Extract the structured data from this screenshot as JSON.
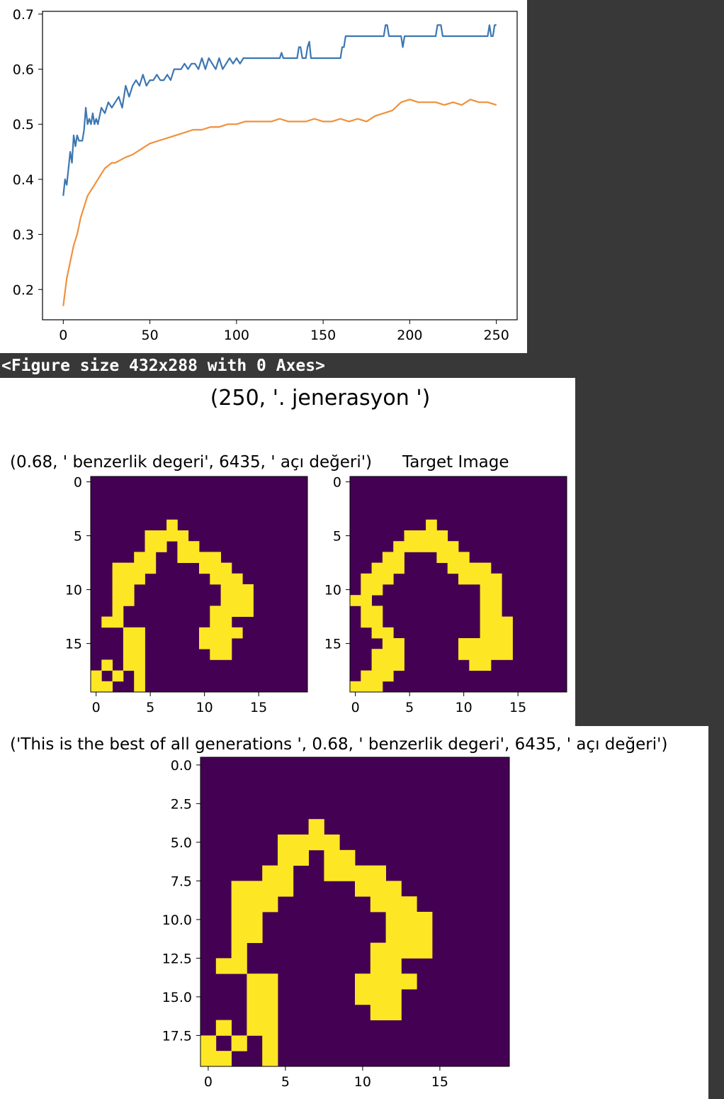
{
  "colors": {
    "blue": "#3d77b2",
    "orange": "#f0913c",
    "background": "#383838",
    "viridis_low": "#440154",
    "viridis_high": "#fde725"
  },
  "figure_text": "<Figure size 432x288 with 0 Axes>",
  "suptitle": "(250, '. jenerasyon ')",
  "chart_data": [
    {
      "type": "line",
      "xlim": [
        -12,
        262
      ],
      "ylim": [
        0.145,
        0.705
      ],
      "xticks": [
        0,
        50,
        100,
        150,
        200,
        250
      ],
      "yticks": [
        0.2,
        0.3,
        0.4,
        0.5,
        0.6,
        0.7
      ],
      "grid": false,
      "series": [
        {
          "color": "#3d77b2",
          "x": [
            0,
            1,
            2,
            3,
            4,
            5,
            6,
            7,
            8,
            9,
            10,
            11,
            12,
            13,
            14,
            15,
            16,
            17,
            18,
            19,
            20,
            22,
            24,
            26,
            28,
            30,
            32,
            34,
            36,
            38,
            40,
            42,
            44,
            46,
            48,
            50,
            52,
            54,
            56,
            58,
            60,
            62,
            64,
            66,
            68,
            70,
            72,
            74,
            76,
            78,
            80,
            82,
            84,
            86,
            88,
            90,
            92,
            94,
            96,
            98,
            100,
            102,
            104,
            106,
            108,
            110,
            115,
            120,
            125,
            126,
            127,
            130,
            135,
            136,
            137,
            138,
            140,
            141,
            142,
            143,
            150,
            155,
            160,
            161,
            162,
            163,
            165,
            170,
            175,
            180,
            185,
            186,
            187,
            188,
            190,
            195,
            196,
            197,
            200,
            205,
            210,
            215,
            216,
            217,
            218,
            219,
            220,
            225,
            230,
            235,
            240,
            245,
            246,
            247,
            248,
            249,
            250
          ],
          "y": [
            0.37,
            0.4,
            0.39,
            0.42,
            0.45,
            0.43,
            0.48,
            0.46,
            0.48,
            0.47,
            0.47,
            0.47,
            0.49,
            0.53,
            0.5,
            0.51,
            0.5,
            0.52,
            0.5,
            0.51,
            0.5,
            0.53,
            0.52,
            0.54,
            0.53,
            0.54,
            0.55,
            0.53,
            0.57,
            0.55,
            0.57,
            0.58,
            0.57,
            0.59,
            0.57,
            0.58,
            0.58,
            0.59,
            0.58,
            0.58,
            0.59,
            0.58,
            0.6,
            0.6,
            0.6,
            0.61,
            0.6,
            0.61,
            0.61,
            0.6,
            0.62,
            0.6,
            0.62,
            0.61,
            0.6,
            0.62,
            0.6,
            0.61,
            0.62,
            0.61,
            0.62,
            0.61,
            0.62,
            0.62,
            0.62,
            0.62,
            0.62,
            0.62,
            0.62,
            0.63,
            0.62,
            0.62,
            0.62,
            0.64,
            0.64,
            0.62,
            0.62,
            0.64,
            0.65,
            0.62,
            0.62,
            0.62,
            0.62,
            0.64,
            0.64,
            0.66,
            0.66,
            0.66,
            0.66,
            0.66,
            0.66,
            0.68,
            0.68,
            0.66,
            0.66,
            0.66,
            0.64,
            0.66,
            0.66,
            0.66,
            0.66,
            0.66,
            0.68,
            0.68,
            0.68,
            0.66,
            0.66,
            0.66,
            0.66,
            0.66,
            0.66,
            0.66,
            0.68,
            0.66,
            0.66,
            0.68,
            0.68
          ]
        },
        {
          "color": "#f0913c",
          "x": [
            0,
            2,
            4,
            6,
            8,
            10,
            12,
            14,
            16,
            18,
            20,
            22,
            24,
            26,
            28,
            30,
            33,
            36,
            40,
            45,
            50,
            55,
            60,
            65,
            70,
            75,
            80,
            85,
            90,
            95,
            100,
            105,
            110,
            115,
            120,
            125,
            130,
            135,
            140,
            145,
            150,
            155,
            160,
            165,
            170,
            175,
            180,
            185,
            190,
            195,
            200,
            205,
            210,
            215,
            220,
            225,
            230,
            235,
            240,
            245,
            250
          ],
          "y": [
            0.17,
            0.22,
            0.25,
            0.28,
            0.3,
            0.33,
            0.35,
            0.37,
            0.38,
            0.39,
            0.4,
            0.41,
            0.42,
            0.425,
            0.43,
            0.43,
            0.435,
            0.44,
            0.445,
            0.455,
            0.465,
            0.47,
            0.475,
            0.48,
            0.485,
            0.49,
            0.49,
            0.495,
            0.495,
            0.5,
            0.5,
            0.505,
            0.505,
            0.505,
            0.505,
            0.51,
            0.505,
            0.505,
            0.505,
            0.51,
            0.505,
            0.505,
            0.51,
            0.505,
            0.51,
            0.505,
            0.515,
            0.52,
            0.525,
            0.54,
            0.545,
            0.54,
            0.54,
            0.54,
            0.535,
            0.54,
            0.535,
            0.545,
            0.54,
            0.54,
            0.535
          ]
        }
      ]
    },
    {
      "type": "heatmap",
      "title": "(0.68, ' benzerlik degeri', 6435, ' açı değeri')",
      "xticks": [
        "0",
        "5",
        "10",
        "15"
      ],
      "yticks": [
        "0",
        "5",
        "10",
        "15"
      ],
      "rows": [
        "00000000000000000000",
        "00000000000000000000",
        "00000000000000000000",
        "00000000000000000000",
        "00000001000000000000",
        "00000111100000000000",
        "00000110110000000000",
        "00001100111100000000",
        "00111100001110000000",
        "00111000000111000000",
        "00110000000011100000",
        "00110000000011100000",
        "00100000000111100000",
        "01100000000110000000",
        "00011000001111000000",
        "00011000001110000000",
        "00011000000110000000",
        "01011000000000000000",
        "10101000000000000000",
        "11001000000000000000"
      ]
    },
    {
      "type": "heatmap",
      "title": "Target Image",
      "xticks": [
        "0",
        "5",
        "10",
        "15"
      ],
      "yticks": [
        "0",
        "5",
        "10",
        "15"
      ],
      "rows": [
        "00000000000000000000",
        "00000000000000000000",
        "00000000000000000000",
        "00000000000000000000",
        "00000001000000000000",
        "00000111100000000000",
        "00001111110000000000",
        "00011000111000000000",
        "00111000011110000000",
        "01110000001111000000",
        "01100000000011000000",
        "11000000000011000000",
        "01100000000011000000",
        "01100000000011100000",
        "00110000000011100000",
        "00011000001111100000",
        "00111000001111100000",
        "00111000000110000000",
        "01110000000000000000",
        "11100000000000000000"
      ]
    },
    {
      "type": "heatmap",
      "title": "('This is the best of all generations ', 0.68, ' benzerlik degeri', 6435, ' açı değeri')",
      "xticks": [
        "0",
        "5",
        "10",
        "15"
      ],
      "yticks": [
        "0.0",
        "2.5",
        "5.0",
        "7.5",
        "10.0",
        "12.5",
        "15.0",
        "17.5"
      ],
      "rows": [
        "00000000000000000000",
        "00000000000000000000",
        "00000000000000000000",
        "00000000000000000000",
        "00000001000000000000",
        "00000111100000000000",
        "00000110110000000000",
        "00001100111100000000",
        "00111100001110000000",
        "00111000000111000000",
        "00110000000011100000",
        "00110000000011100000",
        "00100000000111100000",
        "01100000000110000000",
        "00011000001111000000",
        "00011000001110000000",
        "00011000000110000000",
        "01011000000000000000",
        "10101000000000000000",
        "11001000000000000000"
      ]
    }
  ]
}
